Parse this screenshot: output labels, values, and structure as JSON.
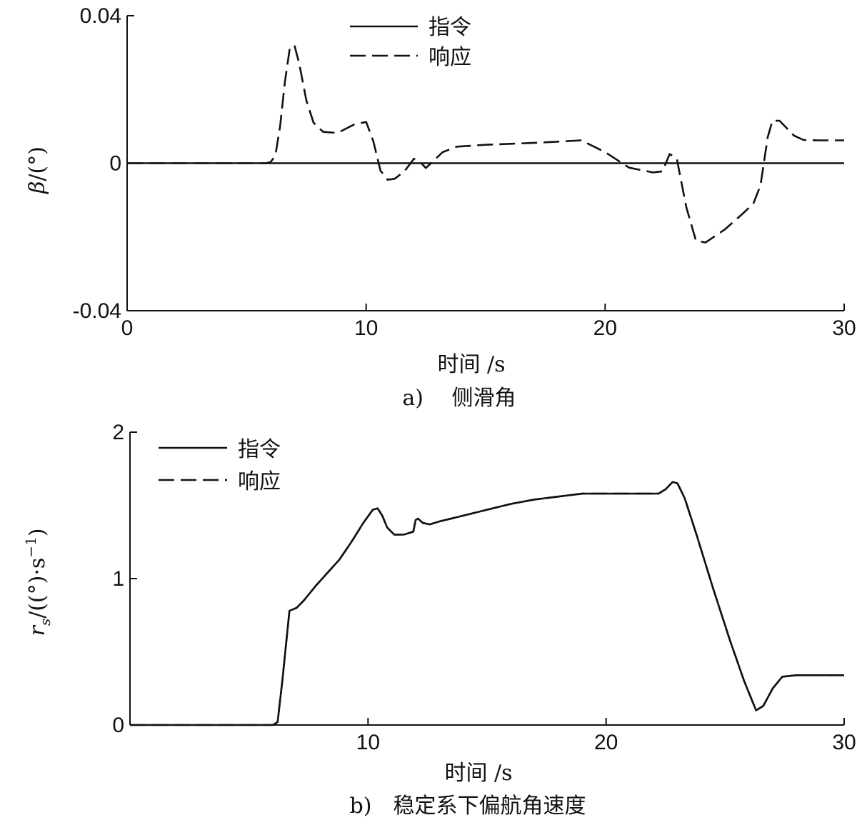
{
  "chart_data": [
    {
      "type": "line",
      "caption": "a)　 侧滑角",
      "xlabel": "时间 /s",
      "ylabel": "β/(°)",
      "xlim": [
        0,
        30
      ],
      "ylim": [
        -0.04,
        0.04
      ],
      "xticks": [
        0,
        10,
        20,
        30
      ],
      "xtick_labels": [
        "0",
        "10",
        "20",
        "30"
      ],
      "yticks": [
        0.04,
        0,
        -0.04
      ],
      "ytick_labels": [
        "0.04",
        "0",
        "-0.04"
      ],
      "grid": false,
      "legend": {
        "placement": "top-left",
        "entries": [
          "指令",
          "响应"
        ]
      },
      "series": [
        {
          "name": "指令",
          "style": "solid",
          "x": [
            0,
            30
          ],
          "y": [
            0,
            0
          ]
        },
        {
          "name": "响应",
          "style": "dashed",
          "x": [
            0,
            5.8,
            6.0,
            6.2,
            6.4,
            6.6,
            6.8,
            7.0,
            7.2,
            7.5,
            7.8,
            8.2,
            8.8,
            9.5,
            10.0,
            10.3,
            10.6,
            10.9,
            11.2,
            11.6,
            12.0,
            12.2,
            12.5,
            12.8,
            13.2,
            13.8,
            15,
            17,
            19,
            20,
            21,
            22,
            22.4,
            22.7,
            23.0,
            23.4,
            23.8,
            24.2,
            25,
            25.7,
            26.2,
            26.5,
            26.8,
            27.0,
            27.3,
            27.6,
            27.9,
            28.3,
            29,
            30
          ],
          "y": [
            0,
            0,
            0.0003,
            0.002,
            0.01,
            0.022,
            0.031,
            0.032,
            0.027,
            0.017,
            0.011,
            0.0085,
            0.0082,
            0.0105,
            0.0112,
            0.006,
            -0.002,
            -0.0045,
            -0.0042,
            -0.0022,
            0.0012,
            0.0007,
            -0.0013,
            0.0005,
            0.003,
            0.0045,
            0.005,
            0.0055,
            0.0062,
            0.003,
            -0.0012,
            -0.0025,
            -0.0022,
            0.0025,
            0.0012,
            -0.012,
            -0.021,
            -0.0215,
            -0.018,
            -0.014,
            -0.011,
            -0.006,
            0.007,
            0.0115,
            0.0115,
            0.0095,
            0.0075,
            0.0063,
            0.0062,
            0.0062
          ]
        }
      ]
    },
    {
      "type": "line",
      "caption": "b)　稳定系下偏航角速度",
      "xlabel": "时间 /s",
      "ylabel": "r_s/((°)·s^-1)",
      "xlim": [
        0,
        30
      ],
      "ylim": [
        0,
        2
      ],
      "xticks": [
        10,
        20,
        30
      ],
      "xtick_labels": [
        "10",
        "20",
        "30"
      ],
      "yticks": [
        2,
        1,
        0
      ],
      "ytick_labels": [
        "2",
        "1",
        "0"
      ],
      "grid": false,
      "legend": {
        "placement": "top-left",
        "entries": [
          "指令",
          "响应"
        ]
      },
      "series": [
        {
          "name": "指令",
          "style": "solid",
          "x": [
            0,
            6.0,
            6.2,
            6.4,
            6.7,
            7.0,
            7.3,
            7.8,
            8.3,
            8.8,
            9.3,
            9.8,
            10.2,
            10.4,
            10.6,
            10.8,
            11.1,
            11.5,
            11.9,
            12.0,
            12.1,
            12.3,
            12.6,
            13,
            14,
            15,
            16,
            17,
            18,
            19,
            20,
            21,
            22.2,
            22.5,
            22.8,
            23.0,
            23.3,
            23.8,
            24.5,
            25.2,
            25.8,
            26.3,
            26.6,
            27.0,
            27.4,
            28,
            29,
            30
          ],
          "y": [
            0,
            0,
            0.02,
            0.3,
            0.78,
            0.8,
            0.85,
            0.95,
            1.04,
            1.13,
            1.25,
            1.38,
            1.47,
            1.48,
            1.43,
            1.35,
            1.3,
            1.3,
            1.32,
            1.4,
            1.41,
            1.38,
            1.37,
            1.39,
            1.43,
            1.47,
            1.51,
            1.54,
            1.56,
            1.58,
            1.58,
            1.58,
            1.58,
            1.61,
            1.66,
            1.65,
            1.55,
            1.3,
            0.93,
            0.58,
            0.3,
            0.1,
            0.13,
            0.25,
            0.33,
            0.34,
            0.34,
            0.34
          ]
        },
        {
          "name": "响应",
          "style": "dashed",
          "x": [
            0,
            6.0,
            6.2,
            6.4,
            6.7,
            7.0,
            7.3,
            7.8,
            8.3,
            8.8,
            9.3,
            9.8,
            10.2,
            10.4,
            10.6,
            10.8,
            11.1,
            11.5,
            11.9,
            12.0,
            12.1,
            12.3,
            12.6,
            13,
            14,
            15,
            16,
            17,
            18,
            19,
            20,
            21,
            22.2,
            22.5,
            22.8,
            23.0,
            23.3,
            23.8,
            24.5,
            25.2,
            25.8,
            26.3,
            26.6,
            27.0,
            27.4,
            28,
            29,
            30
          ],
          "y": [
            0,
            0,
            0.02,
            0.3,
            0.78,
            0.8,
            0.85,
            0.95,
            1.04,
            1.13,
            1.25,
            1.38,
            1.47,
            1.48,
            1.43,
            1.35,
            1.3,
            1.3,
            1.32,
            1.4,
            1.41,
            1.38,
            1.37,
            1.39,
            1.43,
            1.47,
            1.51,
            1.54,
            1.56,
            1.58,
            1.58,
            1.58,
            1.58,
            1.61,
            1.66,
            1.65,
            1.55,
            1.3,
            0.93,
            0.58,
            0.3,
            0.1,
            0.13,
            0.25,
            0.33,
            0.34,
            0.34,
            0.34
          ]
        }
      ]
    }
  ]
}
